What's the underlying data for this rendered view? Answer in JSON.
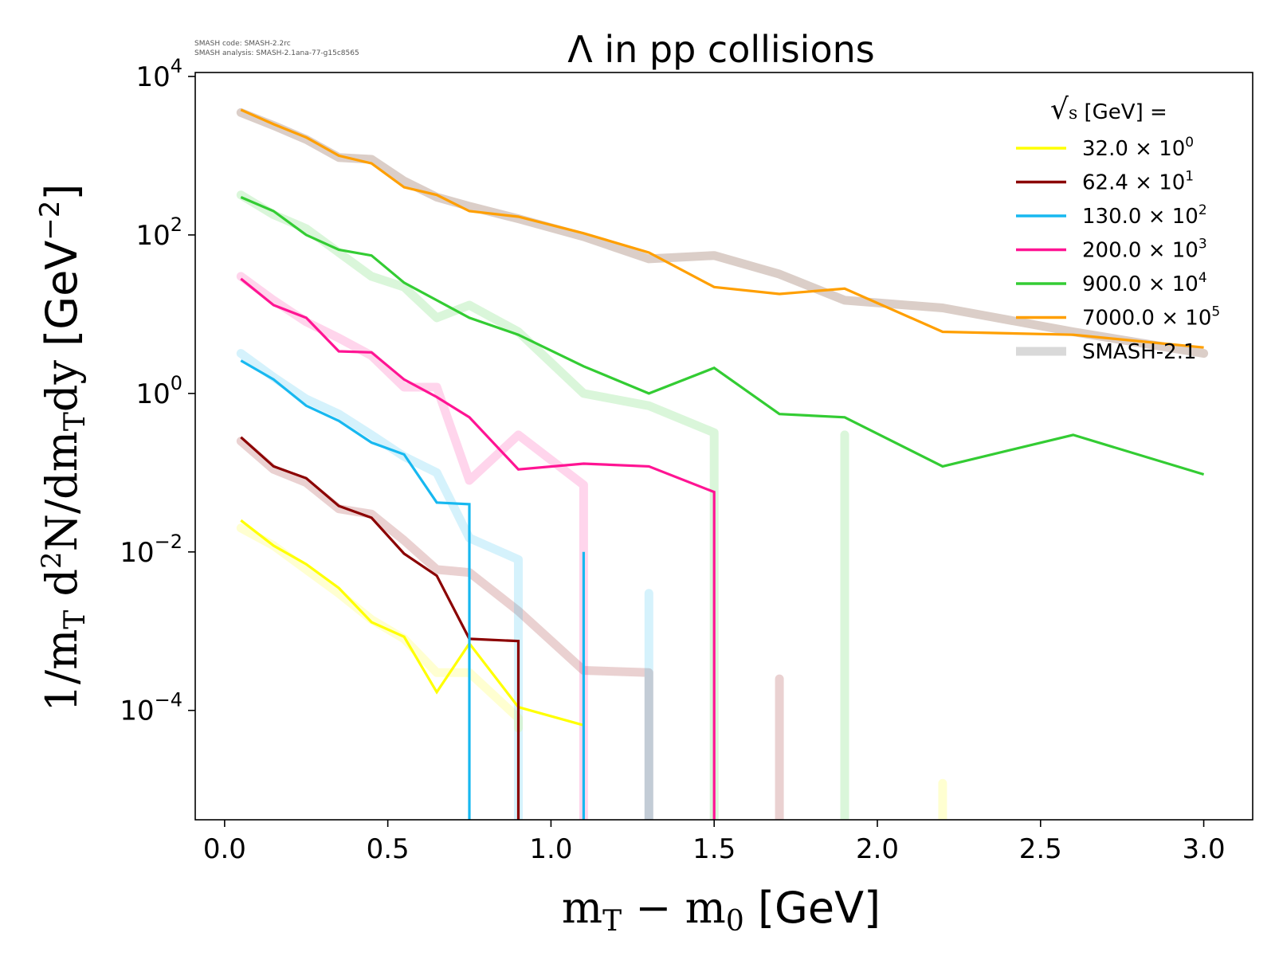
{
  "meta": {
    "code_line": "SMASH code:      SMASH-2.2rc",
    "analysis_line": "SMASH analysis: SMASH-2.1ana-77-g15c8565"
  },
  "chart_data": {
    "type": "line",
    "title": "Λ in pp collisions",
    "xlabel": "m_T − m_0 [GeV]",
    "ylabel": "1/m_T d²N/dm_T dy [GeV⁻²]",
    "xlim": [
      -0.09,
      3.15
    ],
    "ylim_exp": [
      -5.38,
      4.05
    ],
    "yscale": "log",
    "grid": false,
    "legend_position": "top-right",
    "legend_title": "√s  [GeV] =",
    "x_ticks": [
      "0.0",
      "0.5",
      "1.0",
      "1.5",
      "2.0",
      "2.5",
      "3.0"
    ],
    "x_tick_values": [
      0,
      0.5,
      1,
      1.5,
      2,
      2.5,
      3
    ],
    "y_ticks": [
      {
        "base": "10",
        "exp": "4",
        "value": 4
      },
      {
        "base": "10",
        "exp": "2",
        "value": 2
      },
      {
        "base": "10",
        "exp": "0",
        "value": 0
      },
      {
        "base": "10",
        "exp": "−2",
        "value": -2
      },
      {
        "base": "10",
        "exp": "−4",
        "value": -4
      }
    ],
    "series": [
      {
        "name": "32.0 × 10⁰",
        "label_main": "32.0 × 10",
        "label_exp": "0",
        "color": "#ffff00",
        "x": [
          0.05,
          0.15,
          0.25,
          0.35,
          0.45,
          0.55,
          0.65,
          0.75,
          0.9,
          1.1
        ],
        "y": [
          0.025,
          0.012,
          0.007,
          0.0035,
          0.0013,
          0.00085,
          0.00017,
          0.0007,
          0.00011,
          6.5e-05
        ]
      },
      {
        "name": "62.4 × 10¹",
        "label_main": "62.4 × 10",
        "label_exp": "1",
        "color": "#8b0000",
        "x": [
          0.05,
          0.15,
          0.25,
          0.35,
          0.45,
          0.55,
          0.65,
          0.75,
          0.9,
          0.9
        ],
        "y": [
          0.28,
          0.12,
          0.085,
          0.038,
          0.027,
          0.0095,
          0.005,
          0.0008,
          0.00075,
          2.5e-06
        ]
      },
      {
        "name": "130.0 × 10²",
        "label_main": "130.0 × 10",
        "label_exp": "2",
        "color": "#17b8f0",
        "x": [
          0.05,
          0.15,
          0.25,
          0.35,
          0.45,
          0.55,
          0.65,
          0.75,
          0.75,
          0.75,
          1.1,
          1.1,
          1.1
        ],
        "y": [
          2.6,
          1.5,
          0.7,
          0.45,
          0.24,
          0.17,
          0.042,
          0.04,
          2.5e-06,
          null,
          2.5e-06,
          0.01,
          null
        ]
      },
      {
        "name": "200.0 × 10³",
        "label_main": "200.0 × 10",
        "label_exp": "3",
        "color": "#ff1493",
        "x": [
          0.05,
          0.15,
          0.25,
          0.35,
          0.45,
          0.55,
          0.65,
          0.75,
          0.9,
          1.1,
          1.3,
          1.5,
          1.5
        ],
        "y": [
          28,
          13,
          9,
          3.4,
          3.3,
          1.5,
          0.9,
          0.5,
          0.11,
          0.13,
          0.12,
          0.057,
          2.5e-06
        ]
      },
      {
        "name": "900.0 × 10⁴",
        "label_main": "900.0 × 10",
        "label_exp": "4",
        "color": "#33cc33",
        "x": [
          0.05,
          0.15,
          0.25,
          0.35,
          0.45,
          0.55,
          0.65,
          0.75,
          0.9,
          1.1,
          1.3,
          1.5,
          1.7,
          1.9,
          2.2,
          2.6,
          3.0
        ],
        "y": [
          300,
          200,
          100,
          65,
          55,
          25,
          15,
          9,
          5.5,
          2.2,
          1.0,
          2.1,
          0.55,
          0.5,
          0.12,
          0.3,
          0.095
        ]
      },
      {
        "name": "7000.0 × 10⁵",
        "label_main": "7000.0 × 10",
        "label_exp": "5",
        "color": "#ff9f00",
        "x": [
          0.05,
          0.15,
          0.25,
          0.35,
          0.45,
          0.55,
          0.65,
          0.75,
          0.9,
          1.1,
          1.3,
          1.5,
          1.7,
          1.9,
          2.2,
          2.6,
          3.0
        ],
        "y": [
          3800,
          2500,
          1700,
          1000,
          800,
          400,
          320,
          200,
          170,
          105,
          60,
          22,
          18,
          21,
          6,
          5.5,
          3.8
        ]
      }
    ],
    "smash_series": [
      {
        "name": "SMASH-2.1",
        "color": "#ffff00",
        "x": [
          0.05,
          0.15,
          0.25,
          0.35,
          0.45,
          0.55,
          0.65,
          0.75,
          0.9,
          0.9,
          null,
          2.2,
          2.2
        ],
        "y": [
          0.02,
          0.012,
          0.006,
          0.003,
          0.0014,
          0.0008,
          0.0003,
          0.0003,
          8e-05,
          6e-05,
          null,
          2.5e-06,
          1.2e-05
        ]
      },
      {
        "name": "SMASH-2.1",
        "color": "#8b0000",
        "x": [
          0.05,
          0.15,
          0.25,
          0.35,
          0.45,
          0.55,
          0.65,
          0.75,
          0.9,
          1.1,
          1.3,
          1.3,
          null,
          1.7,
          1.7
        ],
        "y": [
          0.25,
          0.11,
          0.075,
          0.035,
          0.03,
          0.014,
          0.006,
          0.0055,
          0.0018,
          0.00032,
          0.0003,
          2.5e-06,
          null,
          2.5e-06,
          0.00025
        ]
      },
      {
        "name": "SMASH-2.1",
        "color": "#17b8f0",
        "x": [
          0.05,
          0.15,
          0.25,
          0.35,
          0.45,
          0.55,
          0.65,
          0.75,
          0.9,
          0.9,
          null,
          1.3,
          1.3
        ],
        "y": [
          3.2,
          1.6,
          0.85,
          0.55,
          0.3,
          0.16,
          0.1,
          0.015,
          0.008,
          2.5e-06,
          null,
          2.5e-06,
          0.003
        ]
      },
      {
        "name": "SMASH-2.1",
        "color": "#ff1493",
        "x": [
          0.05,
          0.15,
          0.25,
          0.35,
          0.45,
          0.55,
          0.65,
          0.75,
          0.9,
          1.1,
          1.1
        ],
        "y": [
          30,
          15,
          8,
          5,
          3,
          1.2,
          1.2,
          0.08,
          0.3,
          0.07,
          2.5e-06
        ]
      },
      {
        "name": "SMASH-2.1",
        "color": "#33cc33",
        "x": [
          0.05,
          0.15,
          0.25,
          0.35,
          0.45,
          0.55,
          0.65,
          0.75,
          0.9,
          1.1,
          1.3,
          1.5,
          1.5,
          null,
          1.9,
          1.9
        ],
        "y": [
          320,
          180,
          120,
          60,
          30,
          22,
          9,
          13,
          6,
          1.0,
          0.7,
          0.32,
          2.5e-06,
          null,
          2.5e-06,
          0.3
        ]
      },
      {
        "name": "SMASH-2.1",
        "color": "#c8b4aa",
        "x": [
          0.05,
          0.15,
          0.25,
          0.35,
          0.45,
          0.55,
          0.65,
          0.75,
          0.9,
          1.1,
          1.3,
          1.5,
          1.7,
          1.9,
          2.2,
          2.6,
          3.0
        ],
        "y": [
          3500,
          2400,
          1600,
          950,
          900,
          480,
          300,
          230,
          160,
          95,
          50,
          55,
          32,
          15,
          12,
          6,
          3.2
        ]
      }
    ],
    "legend_smash": {
      "label": "SMASH-2.1",
      "color": "#d9d9d9"
    }
  }
}
